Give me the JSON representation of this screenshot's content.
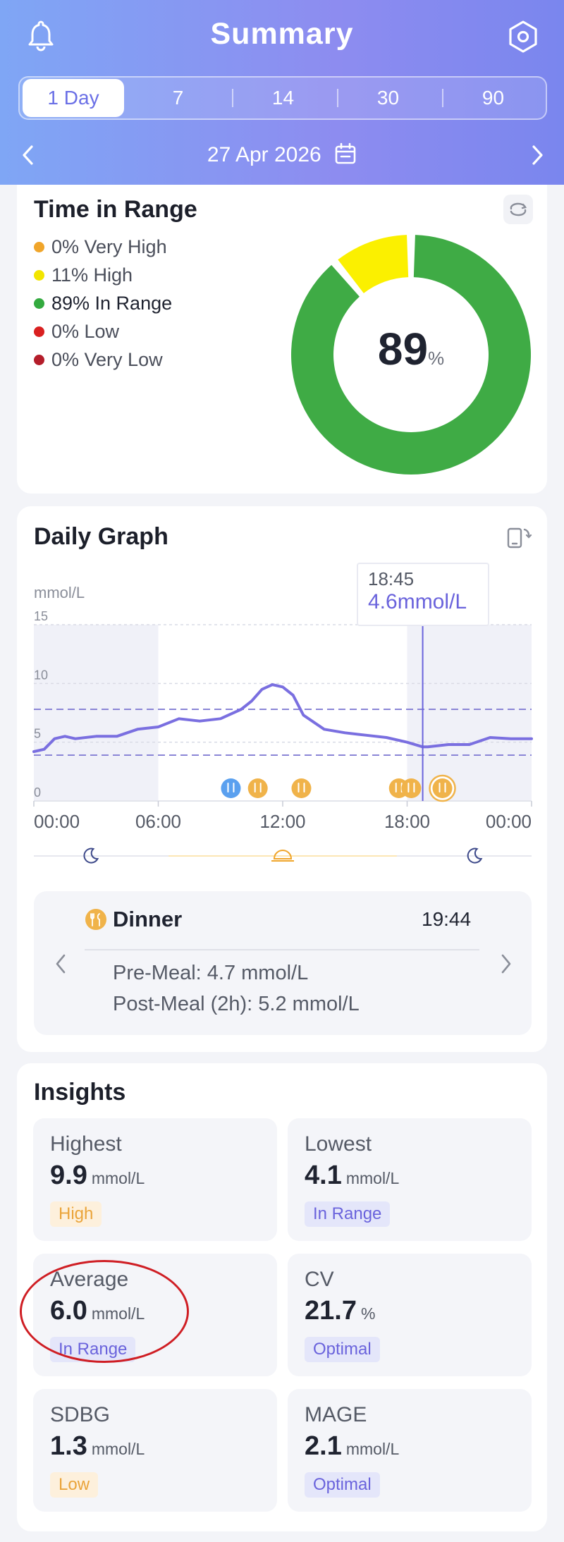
{
  "header": {
    "title": "Summary",
    "tabs": [
      "1 Day",
      "7",
      "14",
      "30",
      "90"
    ],
    "active_tab": "1 Day",
    "date": "27 Apr 2026"
  },
  "time_in_range": {
    "title": "Time in Range",
    "legend": [
      {
        "label": "0% Very High",
        "color": "#f0a52a"
      },
      {
        "label": "11% High",
        "color": "#f2e500"
      },
      {
        "label": "89% In Range",
        "color": "#33aa3f"
      },
      {
        "label": "0% Low",
        "color": "#d92020"
      },
      {
        "label": "0% Very Low",
        "color": "#b41d2a"
      }
    ],
    "center_value": "89",
    "center_unit": "%",
    "segments": [
      {
        "name": "In Range",
        "percent": 89,
        "color": "#3fab45"
      },
      {
        "name": "High",
        "percent": 11,
        "color": "#fbf000"
      }
    ]
  },
  "daily_graph": {
    "title": "Daily Graph",
    "unit": "mmol/L",
    "tooltip": {
      "time": "18:45",
      "value": "4.6mmol/L"
    },
    "meal": {
      "name": "Dinner",
      "time": "19:44",
      "pre": "Pre-Meal: 4.7 mmol/L",
      "post": "Post-Meal (2h): 5.2 mmol/L"
    }
  },
  "chart_data": {
    "type": "line",
    "ylabel": "mmol/L",
    "ylim": [
      0,
      15
    ],
    "yticks": [
      "0",
      "5",
      "10",
      "15"
    ],
    "xlim": [
      0,
      24
    ],
    "xticks": [
      "00:00",
      "06:00",
      "12:00",
      "18:00",
      "00:00"
    ],
    "target_range": [
      3.9,
      7.8
    ],
    "series": [
      {
        "x": [
          0,
          0.5,
          1,
          1.5,
          2,
          3,
          4,
          5,
          6,
          7,
          8,
          9,
          10,
          10.5,
          11,
          11.5,
          12,
          12.5,
          13,
          14,
          15,
          16,
          17,
          18,
          18.75,
          19,
          20,
          21,
          22,
          23,
          24
        ],
        "values": [
          4.2,
          4.4,
          5.3,
          5.5,
          5.3,
          5.5,
          5.5,
          6.1,
          6.3,
          7.0,
          6.8,
          7.0,
          7.8,
          8.5,
          9.5,
          9.9,
          9.7,
          9.0,
          7.3,
          6.1,
          5.8,
          5.6,
          5.4,
          5.0,
          4.6,
          4.6,
          4.8,
          4.8,
          5.4,
          5.3,
          5.3
        ]
      }
    ],
    "selected_point": {
      "x": 18.75,
      "value": 4.6
    },
    "events": [
      {
        "x": 9.5,
        "type": "exercise"
      },
      {
        "x": 10.8,
        "type": "meal"
      },
      {
        "x": 12.9,
        "type": "meal"
      },
      {
        "x": 17.6,
        "type": "meal"
      },
      {
        "x": 18.2,
        "type": "meal"
      },
      {
        "x": 19.7,
        "type": "meal"
      }
    ]
  },
  "insights": {
    "title": "Insights",
    "tiles": [
      {
        "label": "Highest",
        "value": "9.9",
        "unit": "mmol/L",
        "badge": "High"
      },
      {
        "label": "Lowest",
        "value": "4.1",
        "unit": "mmol/L",
        "badge": "In Range"
      },
      {
        "label": "Average",
        "value": "6.0",
        "unit": "mmol/L",
        "badge": "In Range"
      },
      {
        "label": "CV",
        "value": "21.7",
        "unit": "%",
        "badge": "Optimal"
      },
      {
        "label": "SDBG",
        "value": "1.3",
        "unit": "mmol/L",
        "badge": "Low"
      },
      {
        "label": "MAGE",
        "value": "2.1",
        "unit": "mmol/L",
        "badge": "Optimal"
      }
    ]
  }
}
